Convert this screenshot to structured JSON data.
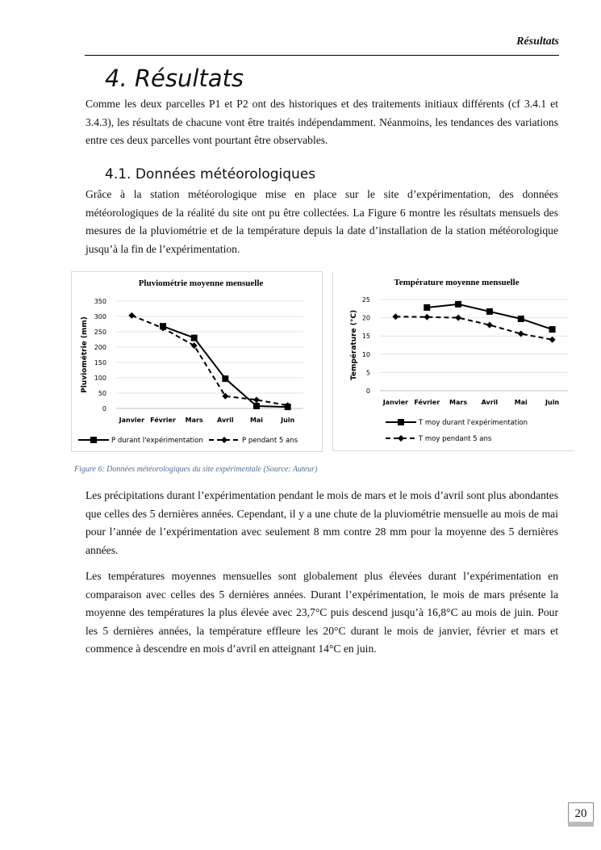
{
  "header": {
    "running_title": "Résultats"
  },
  "section": {
    "title": "4.  Résultats",
    "intro": "Comme les deux parcelles P1 et P2 ont des historiques et des traitements initiaux différents (cf 3.4.1 et 3.4.3), les résultats de chacune vont être traités indépendamment. Néanmoins, les tendances des variations entre ces deux parcelles vont pourtant être observables."
  },
  "subsection": {
    "title": "4.1.    Données météorologiques",
    "text": "Grâce à la station météorologique mise en place sur le site d’expérimentation, des données météorologiques de la réalité du site ont pu être collectées. La Figure 6 montre les résultats mensuels des mesures de la pluviométrie et de la température depuis la date d’installation de la station météorologique jusqu’à la fin de l’expérimentation."
  },
  "caption": "Figure 6: Données météorologiques du site expérimentale (Source: Auteur)",
  "paragraphs": [
    "Les précipitations durant l’expérimentation pendant le mois de mars et le mois d’avril sont plus abondantes que celles des 5 dernières années. Cependant, il y a une chute de la pluviométrie mensuelle au mois de mai pour l’année de l’expérimentation avec seulement 8 mm contre 28 mm pour la moyenne des 5 dernières années.",
    "Les températures moyennes mensuelles sont globalement plus élevées durant l’expérimentation en comparaison avec celles des 5 dernières années. Durant l’expérimentation, le mois de mars présente la moyenne des températures la plus élevée avec 23,7°C puis descend jusqu’à 16,8°C au mois de juin. Pour les 5 dernières années, la température effleure les 20°C durant le mois de janvier, février et mars et commence à descendre en mois d’avril en atteignant 14°C en juin."
  ],
  "page_number": "20",
  "chart_data": [
    {
      "type": "line",
      "title": "Pluviométrie moyenne mensuelle",
      "xlabel": "",
      "ylabel": "Pluviométrie (mm)",
      "categories": [
        "Janvier",
        "Février",
        "Mars",
        "Avril",
        "Mai",
        "Juin"
      ],
      "ylim": [
        0,
        350
      ],
      "yticks": [
        0,
        50,
        100,
        150,
        200,
        250,
        300,
        350
      ],
      "grid": true,
      "legend": "bottom",
      "series": [
        {
          "name": "P durant l'expérimentation",
          "style": "solid",
          "marker": "square",
          "values": [
            null,
            268,
            230,
            97,
            8,
            5
          ]
        },
        {
          "name": "P pendant 5 ans",
          "style": "dashed",
          "marker": "diamond",
          "values": [
            303,
            262,
            205,
            40,
            28,
            10
          ]
        }
      ]
    },
    {
      "type": "line",
      "title": "Température moyenne mensuelle",
      "xlabel": "",
      "ylabel": "Température (°C)",
      "categories": [
        "Janvier",
        "Février",
        "Mars",
        "Avril",
        "Mai",
        "Juin"
      ],
      "ylim": [
        0,
        25
      ],
      "yticks": [
        0,
        5,
        10,
        15,
        20,
        25
      ],
      "grid": true,
      "legend": "bottom",
      "series": [
        {
          "name": "T moy durant l'expérimentation",
          "style": "solid",
          "marker": "square",
          "values": [
            null,
            22.8,
            23.7,
            21.7,
            19.7,
            16.8
          ]
        },
        {
          "name": "T moy pendant 5 ans",
          "style": "dashed",
          "marker": "diamond",
          "values": [
            20.3,
            20.2,
            20.0,
            18.0,
            15.6,
            14.0
          ]
        }
      ]
    }
  ]
}
